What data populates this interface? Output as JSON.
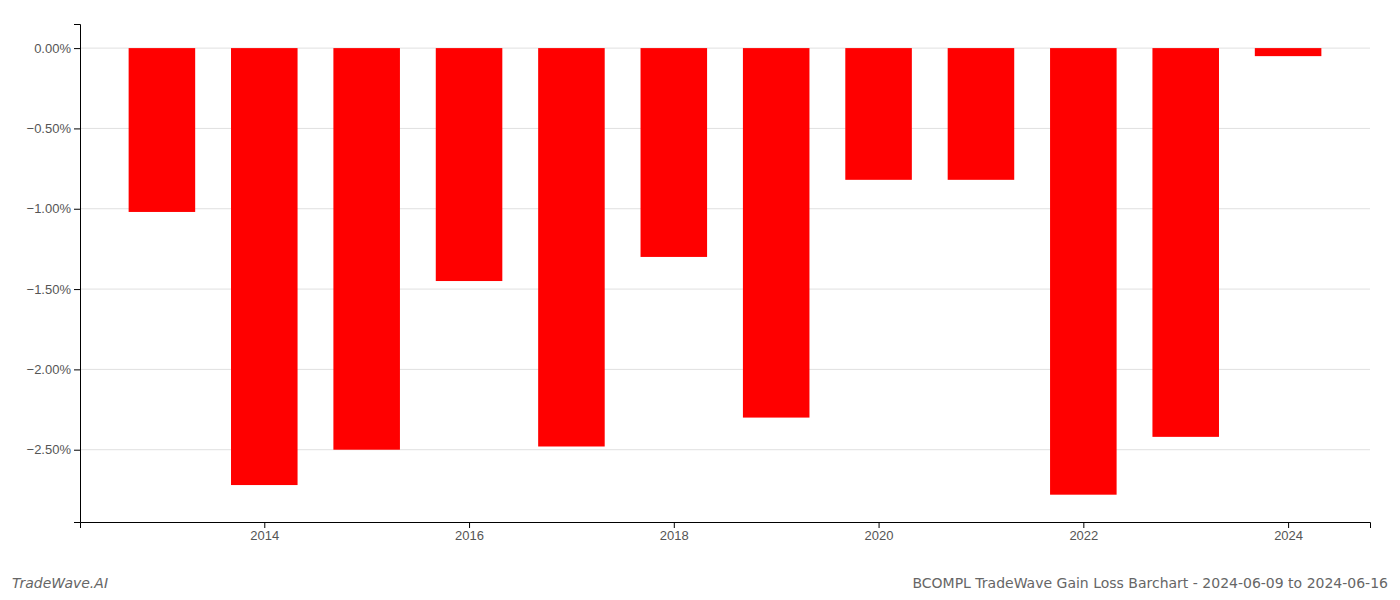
{
  "chart_data": {
    "type": "bar",
    "title": "BCOMPL TradeWave Gain Loss Barchart - 2024-06-09 to 2024-06-16",
    "annotations": [
      "TradeWave.AI"
    ],
    "x": [
      2013,
      2014,
      2015,
      2016,
      2017,
      2018,
      2019,
      2020,
      2021,
      2022,
      2023,
      2024
    ],
    "values": [
      -1.02,
      -2.72,
      -2.5,
      -1.45,
      -2.48,
      -1.3,
      -2.3,
      -0.82,
      -0.82,
      -2.78,
      -2.42,
      -0.05
    ],
    "color": "#ff0000",
    "xlim": [
      2012.2,
      2024.8
    ],
    "xticks": [
      2014,
      2016,
      2018,
      2020,
      2022,
      2024
    ],
    "ylim": [
      -2.95,
      0.15
    ],
    "yticks": [
      {
        "value": 0.0,
        "label": "0.00%"
      },
      {
        "value": -0.5,
        "label": "−0.50%"
      },
      {
        "value": -1.0,
        "label": "−1.00%"
      },
      {
        "value": -1.5,
        "label": "−1.50%"
      },
      {
        "value": -2.0,
        "label": "−2.00%"
      },
      {
        "value": -2.5,
        "label": "−2.50%"
      }
    ],
    "grid": true
  }
}
